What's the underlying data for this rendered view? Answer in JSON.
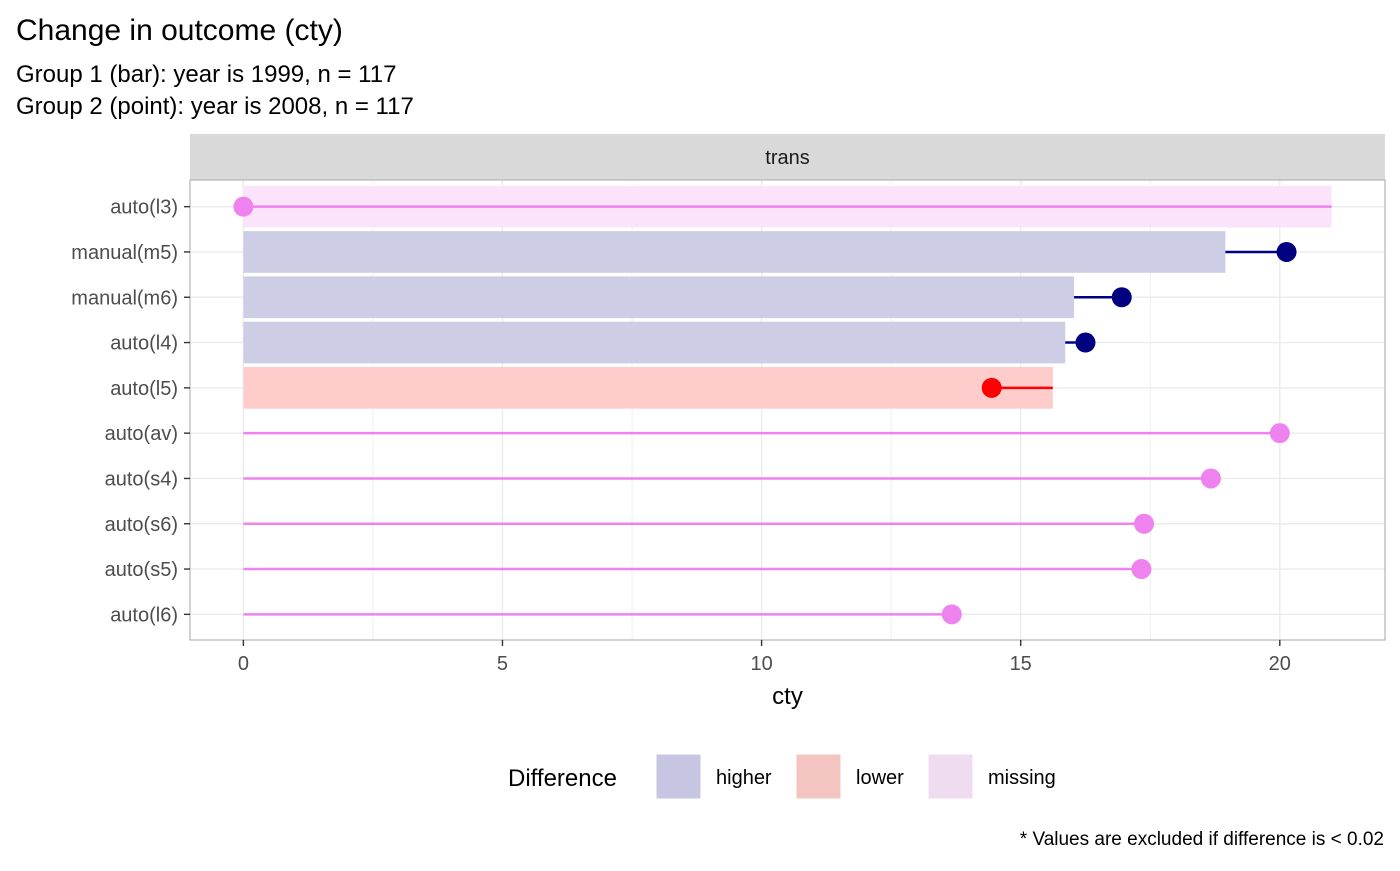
{
  "chart_data": {
    "type": "bar",
    "title": "Change in outcome (cty)",
    "subtitle_lines": [
      "Group 1 (bar): year is 1999, n = 117",
      "Group 2 (point): year is 2008, n = 117"
    ],
    "facet_label": "trans",
    "xlabel": "cty",
    "ylabel": "",
    "xlim": [
      -1.03,
      22.03
    ],
    "x_ticks": [
      0,
      5,
      10,
      15,
      20
    ],
    "x_tick_labels": [
      "0",
      "5",
      "10",
      "15",
      "20"
    ],
    "grid": true,
    "categories": [
      "auto(l3)",
      "manual(m5)",
      "manual(m6)",
      "auto(l4)",
      "auto(l5)",
      "auto(av)",
      "auto(s4)",
      "auto(s6)",
      "auto(s5)",
      "auto(l6)"
    ],
    "series": [
      {
        "name": "Group 1 (bar)",
        "values": [
          21,
          18.95,
          16.03,
          15.86,
          15.62,
          null,
          null,
          null,
          null,
          null
        ]
      },
      {
        "name": "Group 2 (point)",
        "values": [
          0,
          20.13,
          16.95,
          16.25,
          14.44,
          20,
          18.67,
          17.38,
          17.33,
          13.67
        ]
      }
    ],
    "difference": [
      "missing",
      "higher",
      "higher",
      "higher",
      "lower",
      "missing",
      "missing",
      "missing",
      "missing",
      "missing"
    ],
    "legend": {
      "title": "Difference",
      "position": "bottom",
      "items": [
        {
          "key": "higher",
          "label": "higher"
        },
        {
          "key": "lower",
          "label": "lower"
        },
        {
          "key": "missing",
          "label": "missing"
        }
      ]
    },
    "caption": "* Values are excluded if difference is < 0.02",
    "colors": {
      "higher_bar": "#cdcde6",
      "higher_point": "#000080",
      "lower_bar": "#ffcccc",
      "lower_point": "#ff0000",
      "missing_bar": "#fbe4fb",
      "missing_point": "#ee82ee",
      "legend_higher": "#c6c6e2",
      "legend_lower": "#f4c4c0",
      "legend_missing": "#f0dcf0",
      "strip_fill": "#d9d9d9",
      "grid": "#ebebeb",
      "panel_border": "#b3b3b3"
    }
  }
}
